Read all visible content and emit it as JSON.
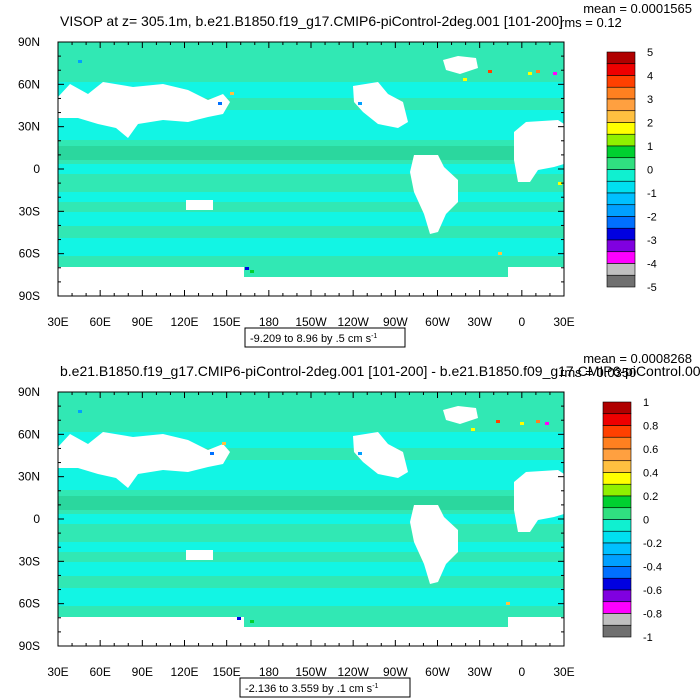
{
  "colors": {
    "ocean_main": "#31e8b4",
    "ocean_band": "#12f5e4",
    "ocean_deep": "#2bd79e",
    "land": "#ffffff",
    "frame": "#000000"
  },
  "chart_data": [
    {
      "type": "heatmap",
      "title": "VISOP at z= 305.1m, b.e21.B1850.f19_g17.CMIP6-piControl-2deg.001 [101-200]",
      "stats": {
        "mean": "mean = 0.0001565",
        "rms": "rms = 0.12"
      },
      "xlabel": "",
      "ylabel": "",
      "x_ticks": [
        "30E",
        "60E",
        "90E",
        "120E",
        "150E",
        "180",
        "150W",
        "120W",
        "90W",
        "60W",
        "30W",
        "0",
        "30E"
      ],
      "y_ticks": [
        "90N",
        "60N",
        "30N",
        "0",
        "30S",
        "60S",
        "90S"
      ],
      "xlim": [
        30,
        390
      ],
      "ylim": [
        -90,
        90
      ],
      "colorbar_labels": [
        "5",
        "4",
        "3",
        "2",
        "1",
        "0",
        "-1",
        "-2",
        "-3",
        "-4",
        "-5"
      ],
      "colorbar_colors": [
        "#b00000",
        "#ee0000",
        "#ff4000",
        "#ff8020",
        "#ffa040",
        "#ffc040",
        "#ffff00",
        "#90f000",
        "#00d030",
        "#30e080",
        "#10f0d0",
        "#00e0f0",
        "#00c0ff",
        "#00a0ff",
        "#0070ff",
        "#0000e0",
        "#8000e0",
        "#ff00ff",
        "#c0c0c0",
        "#707070"
      ],
      "contour_info": "-9.209 to 8.96 by .5 cm s",
      "contour_unit_exp": "-1"
    },
    {
      "type": "heatmap",
      "title": "b.e21.B1850.f19_g17.CMIP6-piControl-2deg.001 [101-200] - b.e21.B1850.f09_g17.CMIP6-piControl.001",
      "stats": {
        "mean": "mean = 0.0008268",
        "rms": "rms = 0.0350"
      },
      "xlabel": "",
      "ylabel": "",
      "x_ticks": [
        "30E",
        "60E",
        "90E",
        "120E",
        "150E",
        "180",
        "150W",
        "120W",
        "90W",
        "60W",
        "30W",
        "0",
        "30E"
      ],
      "y_ticks": [
        "90N",
        "60N",
        "30N",
        "0",
        "30S",
        "60S",
        "90S"
      ],
      "xlim": [
        30,
        390
      ],
      "ylim": [
        -90,
        90
      ],
      "colorbar_labels": [
        "1",
        "0.8",
        "0.6",
        "0.4",
        "0.2",
        "0",
        "-0.2",
        "-0.4",
        "-0.6",
        "-0.8",
        "-1"
      ],
      "colorbar_colors": [
        "#b00000",
        "#ee0000",
        "#ff4000",
        "#ff8020",
        "#ffa040",
        "#ffc040",
        "#ffff00",
        "#90f000",
        "#00d030",
        "#30e080",
        "#10f0d0",
        "#00e0f0",
        "#00c0ff",
        "#00a0ff",
        "#0070ff",
        "#0000e0",
        "#8000e0",
        "#ff00ff",
        "#c0c0c0",
        "#707070"
      ],
      "contour_info": "-2.136 to 3.559 by .1 cm s",
      "contour_unit_exp": "-1"
    }
  ]
}
